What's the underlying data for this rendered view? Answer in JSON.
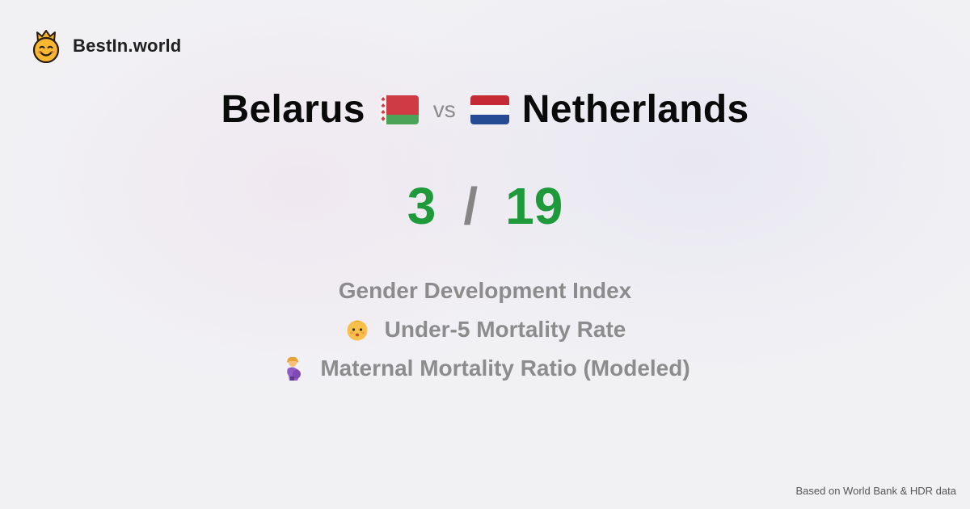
{
  "brand": {
    "name": "BestIn.world",
    "logo_icon": "crown-smiley-icon"
  },
  "comparison": {
    "left_country": "Belarus",
    "left_flag_icon": "belarus-flag-icon",
    "vs_label": "vs",
    "right_country": "Netherlands",
    "right_flag_icon": "netherlands-flag-icon"
  },
  "scores": {
    "left": "3",
    "separator": "/",
    "right": "19"
  },
  "metrics": [
    {
      "label": "Gender Development Index",
      "icon": ""
    },
    {
      "label": "Under-5 Mortality Rate",
      "icon": "baby-face-icon"
    },
    {
      "label": "Maternal Mortality Ratio (Modeled)",
      "icon": "pregnant-woman-icon"
    }
  ],
  "footer": {
    "source": "Based on World Bank & HDR data"
  },
  "colors": {
    "score": "#1e9a3a",
    "muted": "#8c8c8c",
    "title": "#0a0a0a",
    "background": "#f1f1f4"
  }
}
